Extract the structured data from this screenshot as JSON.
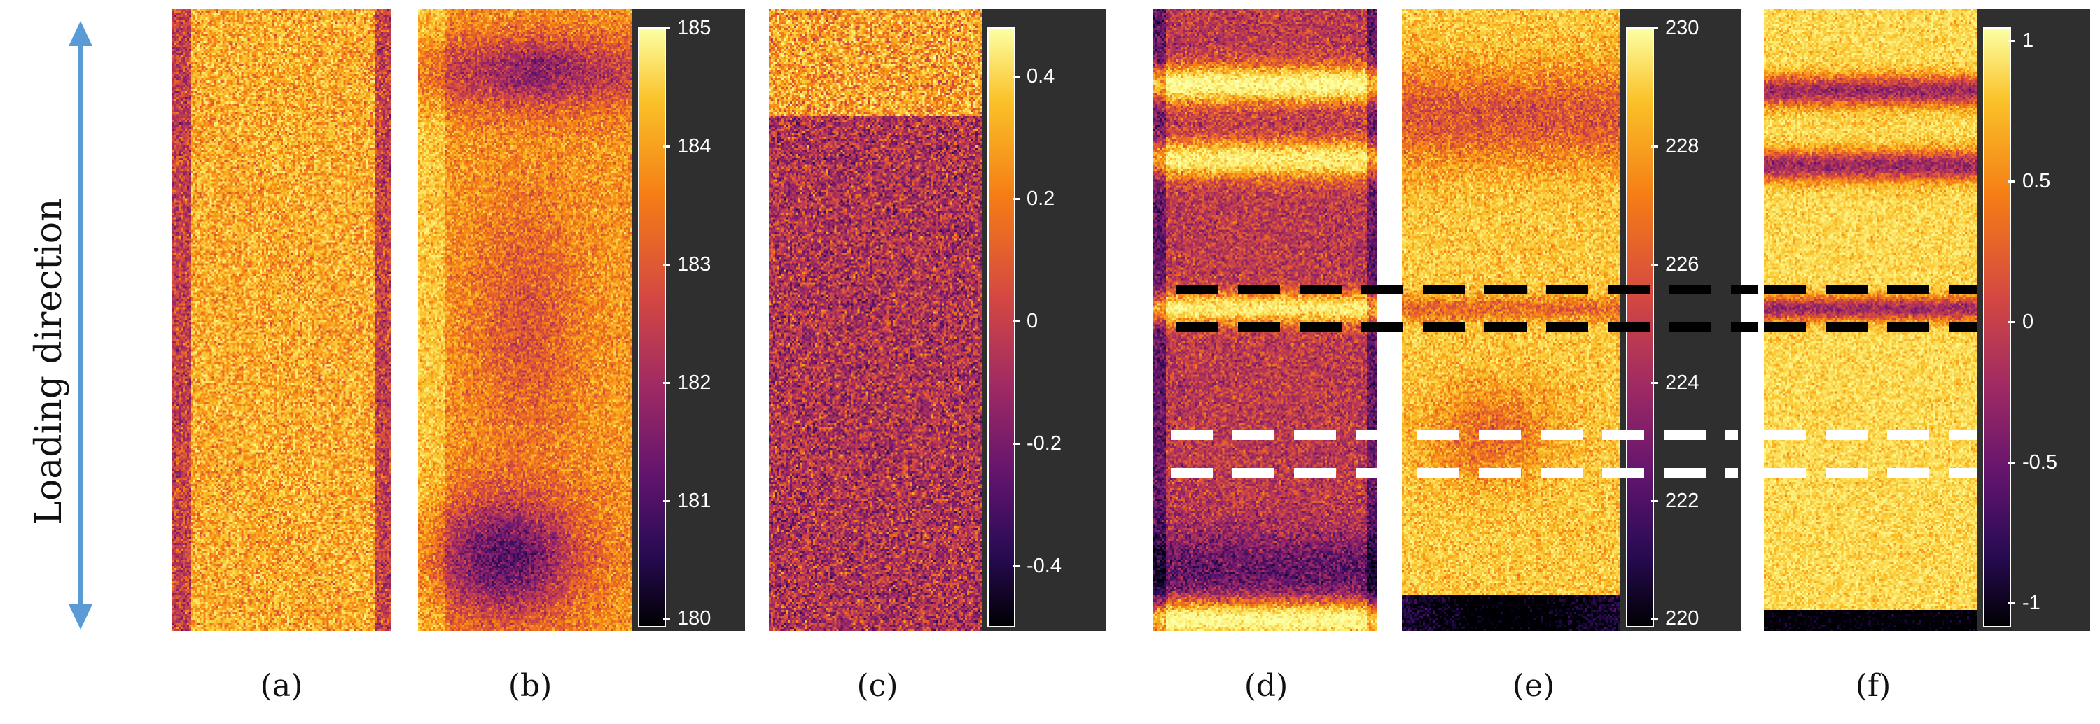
{
  "axis_label": "Loading direction",
  "panels": {
    "a": {
      "label": "(a)"
    },
    "b": {
      "label": "(b)"
    },
    "c": {
      "label": "(c)"
    },
    "d": {
      "label": "(d)"
    },
    "e": {
      "label": "(e)"
    },
    "f": {
      "label": "(f)"
    }
  },
  "colorbars": {
    "b": {
      "ticks": [
        "185",
        "184",
        "183",
        "182",
        "181",
        "180"
      ]
    },
    "c": {
      "ticks": [
        "0.4",
        "0.2",
        "0",
        "-0.2",
        "-0.4"
      ]
    },
    "e": {
      "ticks": [
        "230",
        "228",
        "226",
        "224",
        "222",
        "220"
      ]
    },
    "f": {
      "ticks": [
        "1",
        "0.5",
        "0",
        "-0.5",
        "-1"
      ]
    }
  },
  "colors": {
    "arrow": "#5b9bd5",
    "colorbar_background": "#2f2f2f",
    "dash_upper": "#000000",
    "dash_lower": "#ffffff",
    "colormap": "inferno"
  }
}
